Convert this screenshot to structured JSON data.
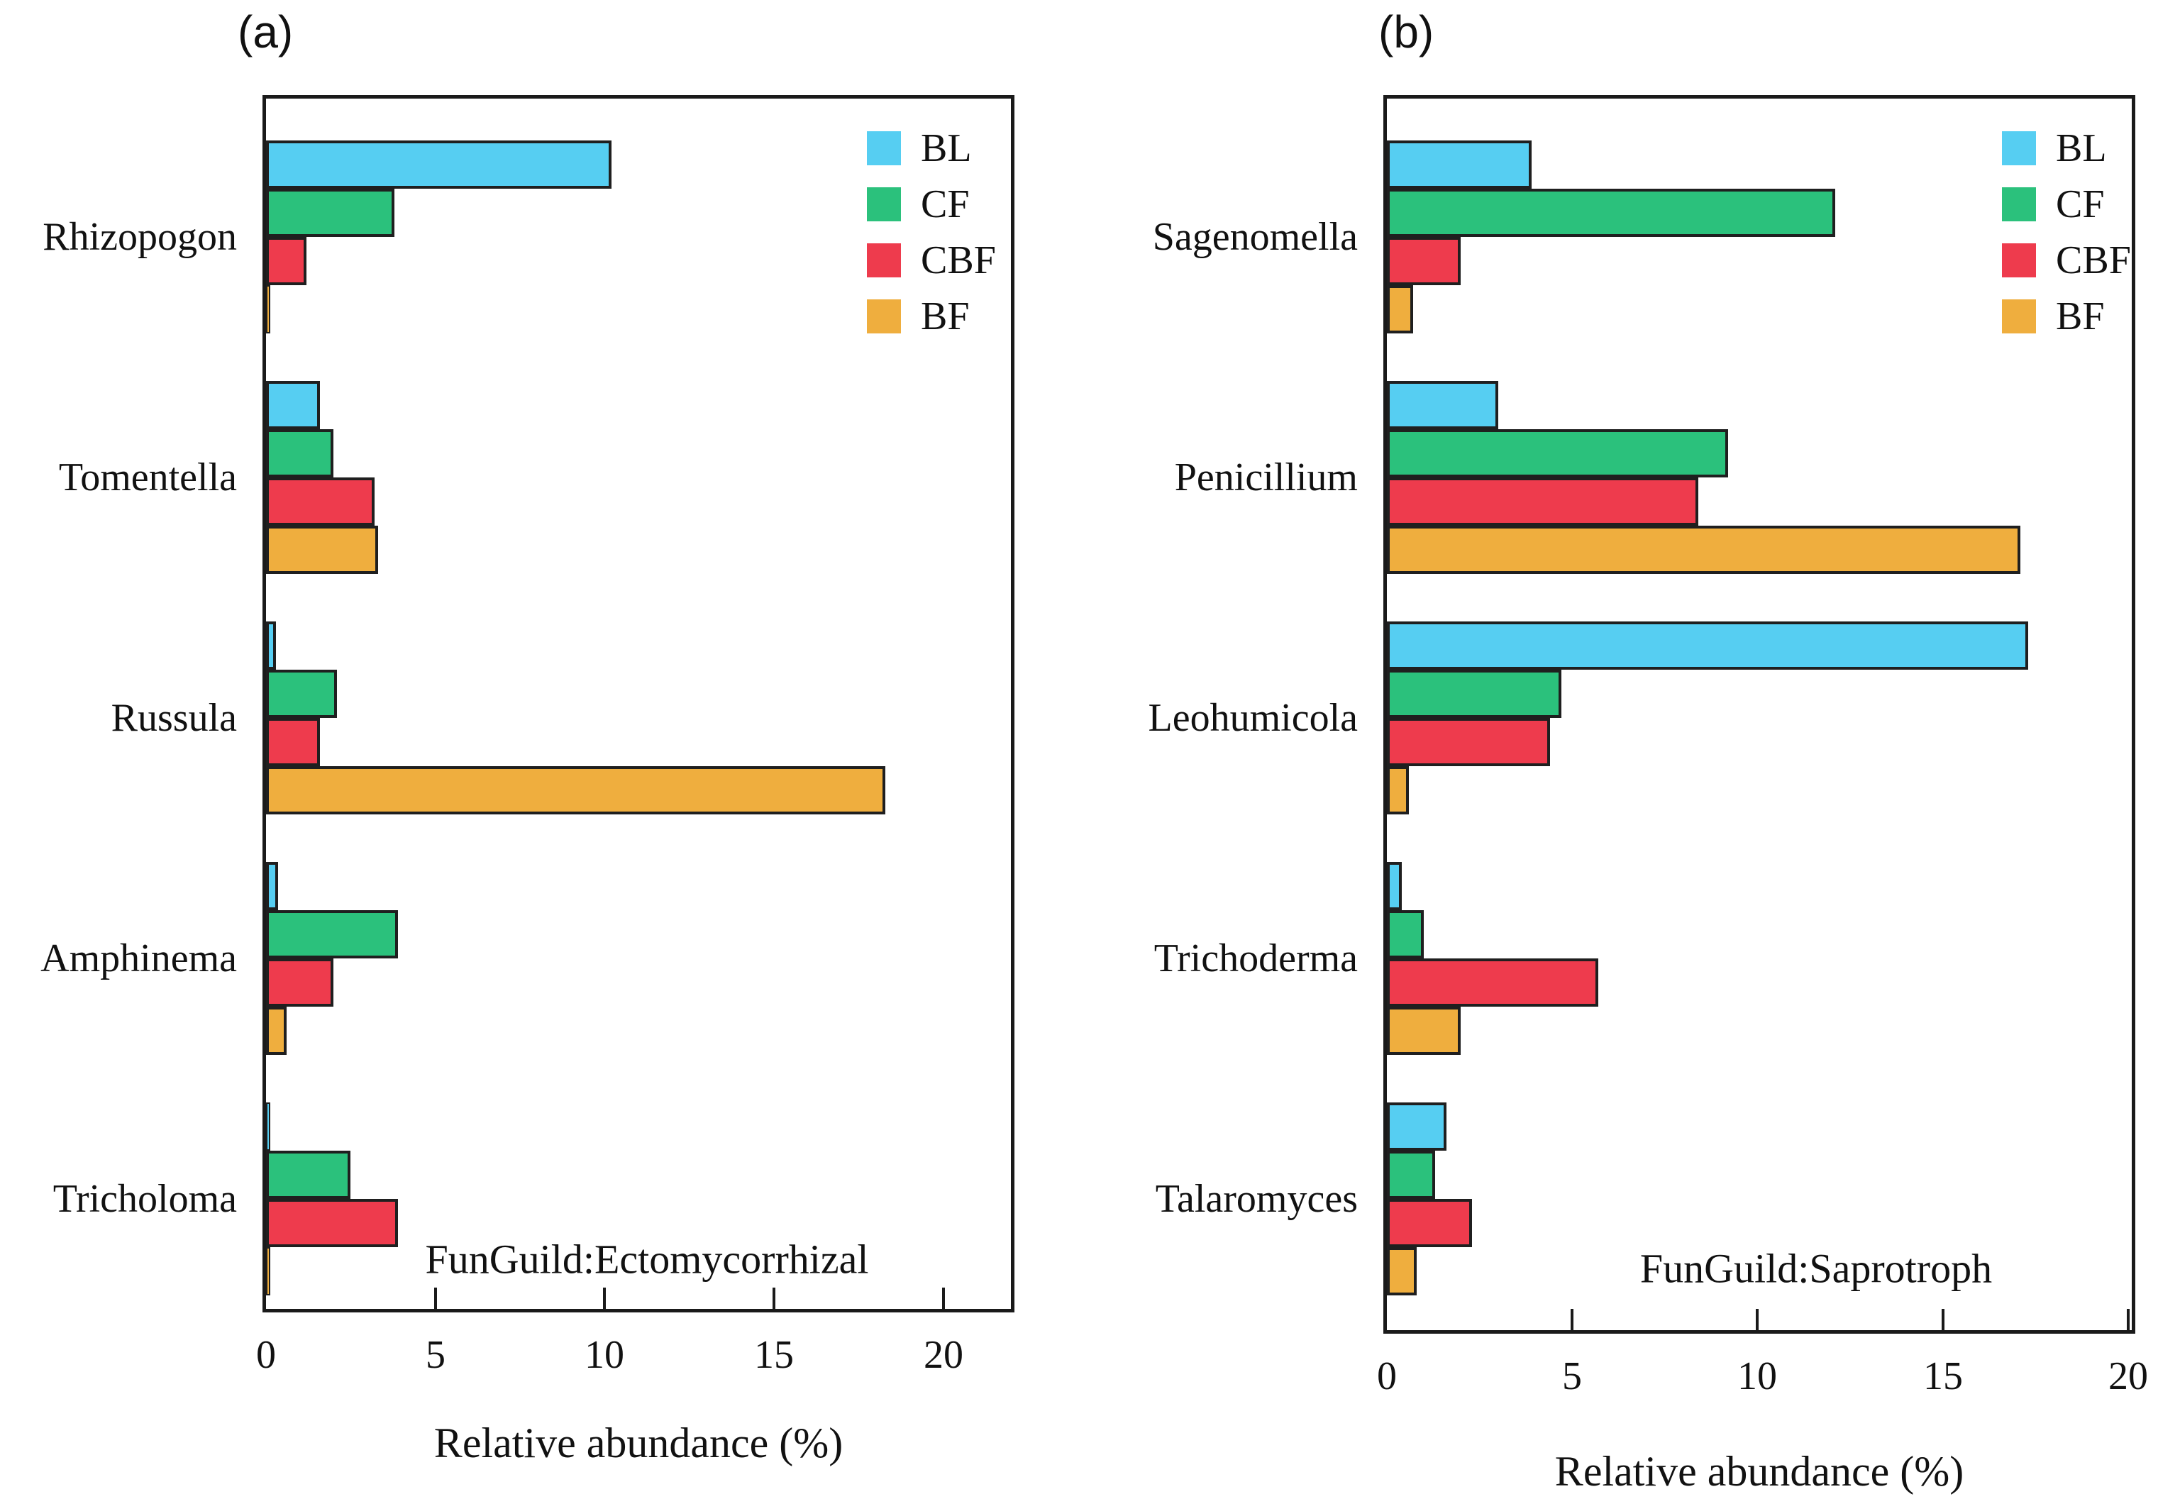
{
  "page": {
    "background": "#ffffff",
    "bar_outline": "#1f1f1f"
  },
  "legend": {
    "entries": [
      {
        "label": "BL",
        "color": "#56CEF2"
      },
      {
        "label": "CF",
        "color": "#2BC17C"
      },
      {
        "label": "CBF",
        "color": "#EE3B4D"
      },
      {
        "label": "BF",
        "color": "#EFAE3E"
      }
    ]
  },
  "chart_data": [
    {
      "type": "bar",
      "orientation": "horizontal",
      "panel_label": "(a)",
      "annotation": "FunGuild:Ectomycorrhizal",
      "xlabel": "Relative abundance (%)",
      "xlim": [
        0,
        22
      ],
      "xticks": [
        0,
        5,
        10,
        15,
        20
      ],
      "grid": false,
      "legend_position": "upper-right-inside",
      "categories": [
        "Rhizopogon",
        "Tomentella",
        "Russula",
        "Amphinema",
        "Tricholoma"
      ],
      "series": [
        {
          "name": "BL",
          "color": "#56CEF2",
          "values": [
            10.2,
            1.6,
            0.3,
            0.35,
            0.05
          ]
        },
        {
          "name": "CF",
          "color": "#2BC17C",
          "values": [
            3.8,
            2.0,
            2.1,
            3.9,
            2.5
          ]
        },
        {
          "name": "CBF",
          "color": "#EE3B4D",
          "values": [
            1.2,
            3.2,
            1.6,
            2.0,
            3.9
          ]
        },
        {
          "name": "BF",
          "color": "#EFAE3E",
          "values": [
            0.05,
            3.3,
            18.3,
            0.6,
            0.1
          ]
        }
      ]
    },
    {
      "type": "bar",
      "orientation": "horizontal",
      "panel_label": "(b)",
      "annotation": "FunGuild:Saprotroph",
      "xlabel": "Relative abundance (%)",
      "xlim": [
        0,
        20.1
      ],
      "xticks": [
        0,
        5,
        10,
        15,
        20
      ],
      "grid": false,
      "legend_position": "upper-right-inside",
      "categories": [
        "Sagenomella",
        "Penicillium",
        "Leohumicola",
        "Trichoderma",
        "Talaromyces"
      ],
      "series": [
        {
          "name": "BL",
          "color": "#56CEF2",
          "values": [
            3.9,
            3.0,
            17.3,
            0.4,
            1.6
          ]
        },
        {
          "name": "CF",
          "color": "#2BC17C",
          "values": [
            12.1,
            9.2,
            4.7,
            1.0,
            1.3
          ]
        },
        {
          "name": "CBF",
          "color": "#EE3B4D",
          "values": [
            2.0,
            8.4,
            4.4,
            5.7,
            2.3
          ]
        },
        {
          "name": "BF",
          "color": "#EFAE3E",
          "values": [
            0.7,
            17.1,
            0.6,
            2.0,
            0.8
          ]
        }
      ]
    }
  ]
}
